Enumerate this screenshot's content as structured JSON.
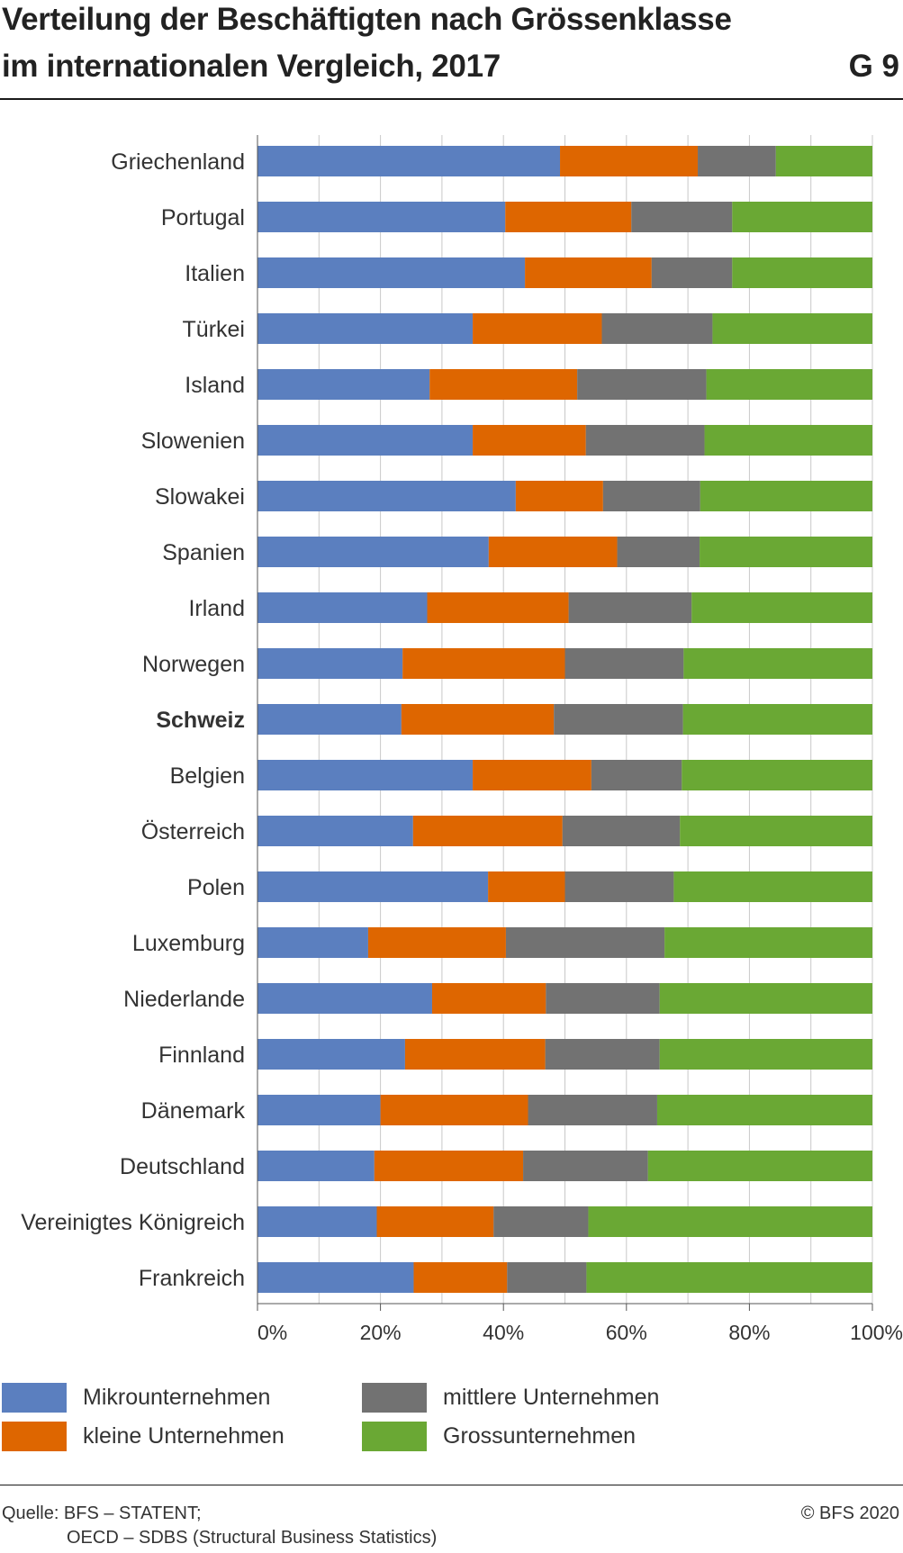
{
  "header": {
    "title_line1": "Verteilung der Beschäftigten nach Grössenklasse",
    "title_line2": "im internationalen Vergleich, 2017",
    "figure_number": "G 9"
  },
  "chart_data": {
    "type": "bar",
    "orientation": "horizontal",
    "stacked": true,
    "categories": [
      "Griechenland",
      "Portugal",
      "Italien",
      "Türkei",
      "Island",
      "Slowenien",
      "Slowakei",
      "Spanien",
      "Irland",
      "Norwegen",
      "Schweiz",
      "Belgien",
      "Österreich",
      "Polen",
      "Luxemburg",
      "Niederlande",
      "Finnland",
      "Dänemark",
      "Deutschland",
      "Vereinigtes Königreich",
      "Frankreich"
    ],
    "highlight_category": "Schweiz",
    "series": [
      {
        "name": "Mikrounternehmen",
        "color": "#5b7fbf",
        "values": [
          49.2,
          40.3,
          43.5,
          35.0,
          28.0,
          35.0,
          42.0,
          37.6,
          27.6,
          23.6,
          23.4,
          35.0,
          25.3,
          37.5,
          18.0,
          28.4,
          24.0,
          20.0,
          19.0,
          19.4,
          25.4
        ]
      },
      {
        "name": "kleine Unternehmen",
        "color": "#de6600",
        "values": [
          22.4,
          20.5,
          20.6,
          21.0,
          24.0,
          18.4,
          14.2,
          20.9,
          23.0,
          26.4,
          24.8,
          19.3,
          24.3,
          12.5,
          22.4,
          18.5,
          22.8,
          24.0,
          24.2,
          19.0,
          15.2
        ]
      },
      {
        "name": "mittlere Unternehmen",
        "color": "#727272",
        "values": [
          12.7,
          16.4,
          13.1,
          18.0,
          21.0,
          19.3,
          15.8,
          13.4,
          20.0,
          19.3,
          21.0,
          14.7,
          19.1,
          17.7,
          25.8,
          18.5,
          18.6,
          21.0,
          20.3,
          15.4,
          12.9
        ]
      },
      {
        "name": "Grossunternehmen",
        "color": "#6aa834",
        "values": [
          15.7,
          22.8,
          22.8,
          26.0,
          27.0,
          27.3,
          28.0,
          28.1,
          29.4,
          30.7,
          30.8,
          31.0,
          31.3,
          32.3,
          33.8,
          34.6,
          34.6,
          35.0,
          36.5,
          46.2,
          46.5
        ]
      }
    ],
    "xlim": [
      0,
      100
    ],
    "x_ticks": [
      "0%",
      "20%",
      "40%",
      "60%",
      "80%",
      "100%"
    ],
    "grid": true,
    "legend_position": "bottom"
  },
  "footer": {
    "source_line1": "Quelle: BFS – STATENT;",
    "source_line2": "OECD – SDBS (Structural Business Statistics)",
    "copyright": "© BFS 2020"
  }
}
